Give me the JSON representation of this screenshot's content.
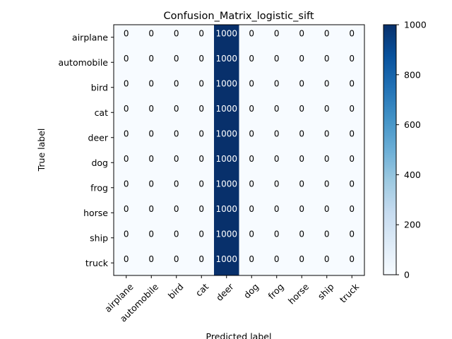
{
  "chart_data": {
    "type": "heatmap",
    "title": "Confusion_Matrix_logistic_sift",
    "xlabel": "Predicted label",
    "ylabel": "True label",
    "x_categories": [
      "airplane",
      "automobile",
      "bird",
      "cat",
      "deer",
      "dog",
      "frog",
      "horse",
      "ship",
      "truck"
    ],
    "y_categories": [
      "airplane",
      "automobile",
      "bird",
      "cat",
      "deer",
      "dog",
      "frog",
      "horse",
      "ship",
      "truck"
    ],
    "values": [
      [
        0,
        0,
        0,
        0,
        1000,
        0,
        0,
        0,
        0,
        0
      ],
      [
        0,
        0,
        0,
        0,
        1000,
        0,
        0,
        0,
        0,
        0
      ],
      [
        0,
        0,
        0,
        0,
        1000,
        0,
        0,
        0,
        0,
        0
      ],
      [
        0,
        0,
        0,
        0,
        1000,
        0,
        0,
        0,
        0,
        0
      ],
      [
        0,
        0,
        0,
        0,
        1000,
        0,
        0,
        0,
        0,
        0
      ],
      [
        0,
        0,
        0,
        0,
        1000,
        0,
        0,
        0,
        0,
        0
      ],
      [
        0,
        0,
        0,
        0,
        1000,
        0,
        0,
        0,
        0,
        0
      ],
      [
        0,
        0,
        0,
        0,
        1000,
        0,
        0,
        0,
        0,
        0
      ],
      [
        0,
        0,
        0,
        0,
        1000,
        0,
        0,
        0,
        0,
        0
      ],
      [
        0,
        0,
        0,
        0,
        1000,
        0,
        0,
        0,
        0,
        0
      ]
    ],
    "colormap": "Blues",
    "color_range": [
      0,
      1000
    ],
    "colorbar_ticks": [
      0,
      200,
      400,
      600,
      800,
      1000
    ],
    "colors": {
      "low": "#f7fbff",
      "high": "#08306b"
    }
  }
}
